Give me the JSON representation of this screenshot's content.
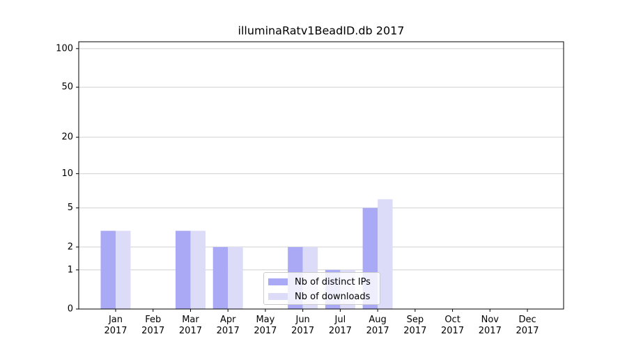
{
  "chart_data": {
    "type": "bar",
    "title": "illuminaRatv1BeadID.db 2017",
    "categories": [
      "Jan\n2017",
      "Feb\n2017",
      "Mar\n2017",
      "Apr\n2017",
      "May\n2017",
      "Jun\n2017",
      "Jul\n2017",
      "Aug\n2017",
      "Sep\n2017",
      "Oct\n2017",
      "Nov\n2017",
      "Dec\n2017"
    ],
    "series": [
      {
        "name": "Nb of distinct IPs",
        "color": "#a9a9f6",
        "values": [
          3,
          0,
          3,
          2,
          0,
          2,
          1,
          5,
          0,
          0,
          0,
          0
        ]
      },
      {
        "name": "Nb of downloads",
        "color": "#dcdcf9",
        "values": [
          3,
          0,
          3,
          2,
          0,
          2,
          1,
          6,
          0,
          0,
          0,
          0
        ]
      }
    ],
    "yscale": "log1p",
    "ylim": [
      0,
      113
    ],
    "yticks": [
      0,
      1,
      2,
      5,
      10,
      20,
      50,
      100
    ],
    "grid": true,
    "legend": "lower center"
  }
}
